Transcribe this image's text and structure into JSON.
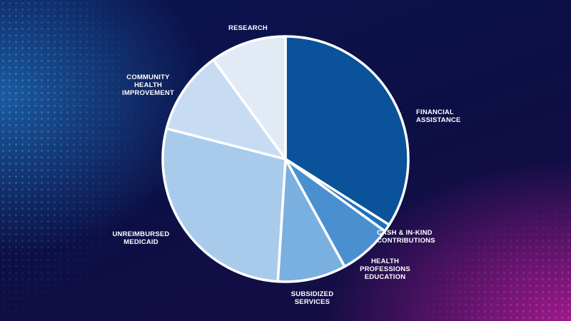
{
  "chart_data": {
    "type": "pie",
    "categories": [
      "FINANCIAL\nASSISTANCE",
      "CASH & IN-KIND\nCONTRIBUTIONS",
      "HEALTH\nPROFESSIONS\nEDUCATION",
      "SUBSIDIZED\nSERVICES",
      "UNREIMBURSED\nMEDICAID",
      "COMMUNITY\nHEALTH\nIMPROVEMENT",
      "RESEARCH"
    ],
    "values": [
      34,
      1,
      7,
      9,
      28,
      11,
      10
    ],
    "colors": [
      "#0a5299",
      "#1f6fbf",
      "#4a90d0",
      "#7ab0e0",
      "#a9cbeb",
      "#c7dcf2",
      "#e2eaf6"
    ]
  }
}
